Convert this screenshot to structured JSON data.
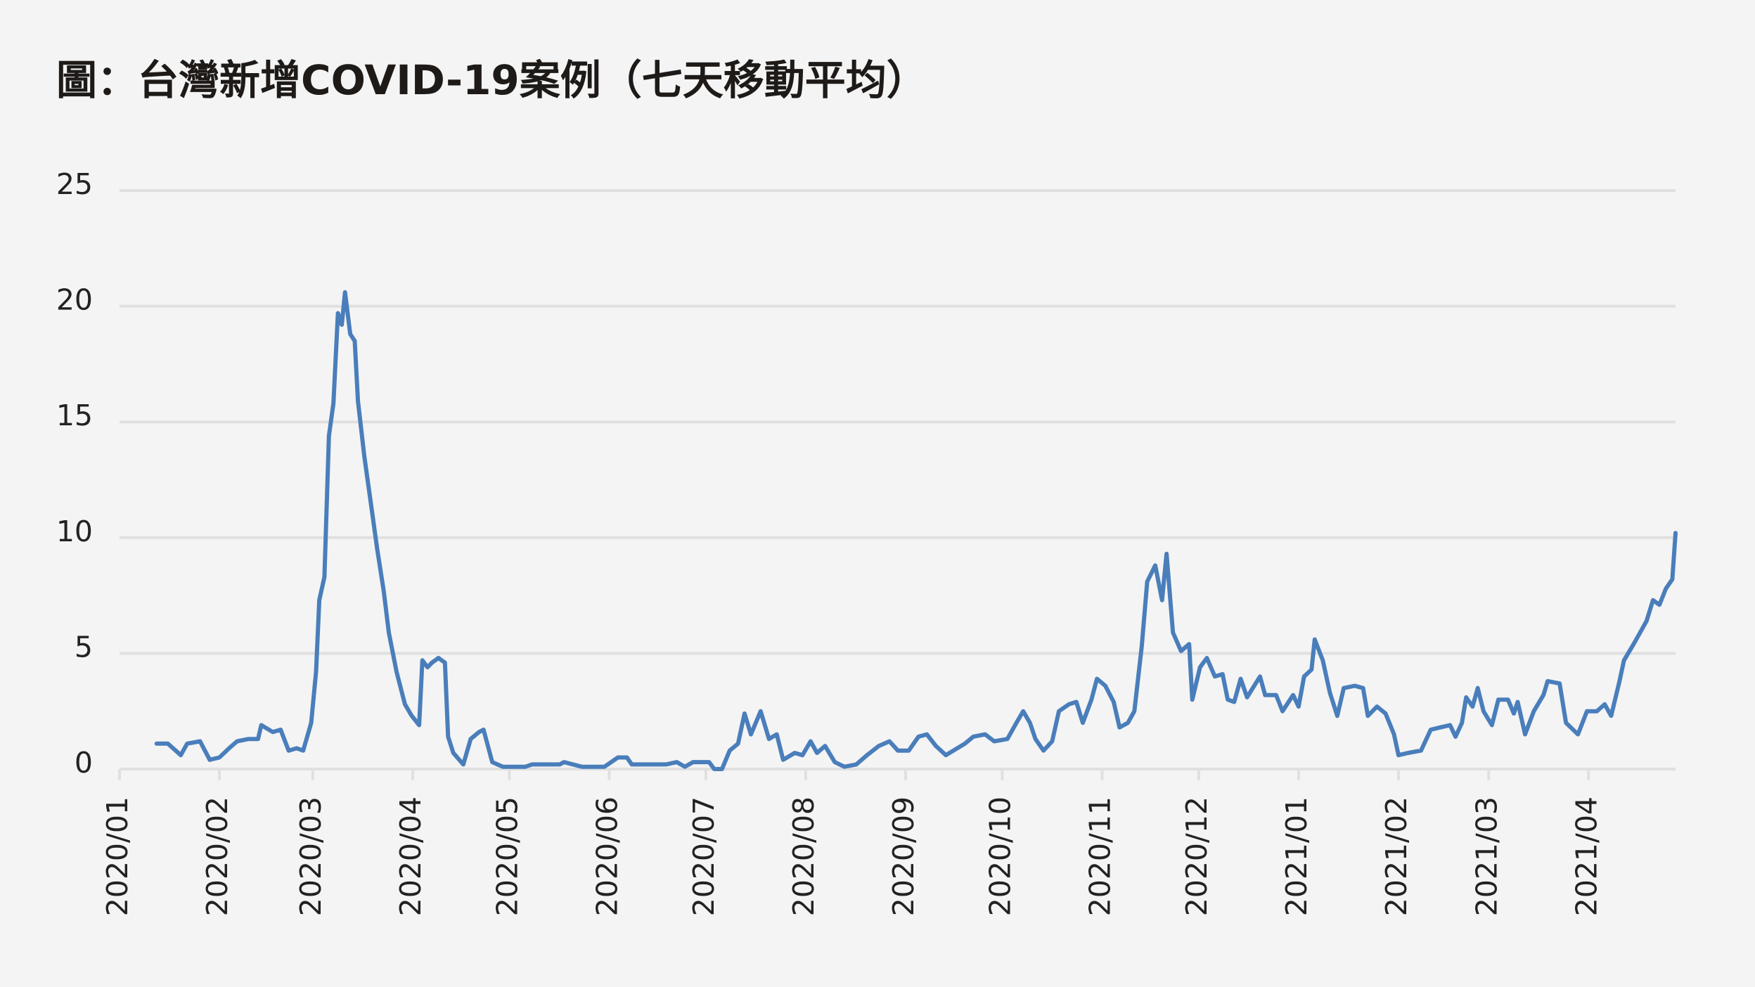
{
  "chart_data": {
    "type": "line",
    "title": "圖：台灣新增COVID-19案例（七天移動平均）",
    "color": "#4a7ebb",
    "grid": true,
    "ylim": [
      0,
      25
    ],
    "yticks": [
      0,
      5,
      10,
      15,
      20,
      25
    ],
    "xlim": [
      0,
      483
    ],
    "xticks": [
      {
        "value": 0,
        "label": "2020/01"
      },
      {
        "value": 31,
        "label": "2020/02"
      },
      {
        "value": 60,
        "label": "2020/03"
      },
      {
        "value": 91,
        "label": "2020/04"
      },
      {
        "value": 121,
        "label": "2020/05"
      },
      {
        "value": 152,
        "label": "2020/06"
      },
      {
        "value": 182,
        "label": "2020/07"
      },
      {
        "value": 213,
        "label": "2020/08"
      },
      {
        "value": 244,
        "label": "2020/09"
      },
      {
        "value": 274,
        "label": "2020/10"
      },
      {
        "value": 305,
        "label": "2020/11"
      },
      {
        "value": 335,
        "label": "2020/12"
      },
      {
        "value": 366,
        "label": "2021/01"
      },
      {
        "value": 397,
        "label": "2021/02"
      },
      {
        "value": 425,
        "label": "2021/03"
      },
      {
        "value": 456,
        "label": "2021/04"
      }
    ],
    "x": [
      11.5,
      15,
      19,
      21,
      25,
      28,
      31,
      34,
      36.5,
      40,
      43,
      44,
      47.6,
      50,
      52.5,
      55,
      57,
      59.5,
      61,
      62,
      63.6,
      65,
      66.4,
      67.8,
      69,
      70,
      71.6,
      73,
      74,
      76,
      78,
      80,
      82,
      83.6,
      86,
      88.6,
      90.7,
      93,
      94,
      95.6,
      97,
      99,
      101,
      102,
      103.6,
      106.7,
      109,
      111.6,
      113,
      115.7,
      119,
      126,
      128,
      136.6,
      138,
      143.5,
      150.5,
      152.6,
      154.7,
      157.5,
      159,
      169.6,
      173,
      175.5,
      178,
      183,
      184.6,
      187,
      189.4,
      192,
      194,
      196,
      199,
      201.6,
      204,
      206,
      209.6,
      212,
      214.5,
      216.5,
      219,
      222,
      225,
      228.7,
      232,
      235.7,
      239,
      241.6,
      245,
      248,
      250.6,
      253.4,
      256.5,
      260,
      262.4,
      265,
      268.7,
      271.5,
      275.6,
      278.4,
      280.5,
      282.6,
      284.3,
      286.8,
      289.5,
      291.6,
      294.7,
      297,
      299,
      301.7,
      303.4,
      306,
      308.6,
      310.4,
      313,
      315,
      317.3,
      319,
      321.5,
      323.6,
      325,
      327,
      329.5,
      332,
      333,
      335.4,
      337.5,
      340,
      342.4,
      344,
      346,
      348,
      350,
      354,
      355.6,
      359,
      361,
      364.3,
      366,
      367.7,
      370,
      371,
      373.5,
      375.7,
      378,
      380,
      383.4,
      386,
      387.5,
      390.3,
      393,
      395.6,
      397,
      400,
      404,
      407,
      410,
      413,
      414.7,
      416.7,
      418,
      420,
      421.6,
      423.4,
      426,
      428,
      431,
      432.8,
      434,
      436.3,
      439,
      442,
      443.3,
      447,
      449,
      452.7,
      455.5,
      458.6,
      461,
      463,
      465.6,
      467,
      470,
      472,
      474,
      476,
      478,
      480,
      482,
      483
    ],
    "values": [
      1.1,
      1.1,
      0.6,
      1.1,
      1.2,
      0.4,
      0.5,
      0.9,
      1.2,
      1.3,
      1.3,
      1.9,
      1.6,
      1.7,
      0.8,
      0.9,
      0.8,
      2,
      4.2,
      7.3,
      8.3,
      14.4,
      15.8,
      19.7,
      19.2,
      20.6,
      18.8,
      18.5,
      15.9,
      13.5,
      11.5,
      9.5,
      7.7,
      5.9,
      4.2,
      2.8,
      2.3,
      1.9,
      4.7,
      4.4,
      4.6,
      4.8,
      4.6,
      1.4,
      0.7,
      0.2,
      1.3,
      1.6,
      1.7,
      0.3,
      0.1,
      0.1,
      0.2,
      0.2,
      0.3,
      0.1,
      0.1,
      0.3,
      0.5,
      0.5,
      0.2,
      0.2,
      0.3,
      0.1,
      0.3,
      0.3,
      0,
      0,
      0.8,
      1.1,
      2.4,
      1.5,
      2.5,
      1.3,
      1.5,
      0.4,
      0.7,
      0.6,
      1.2,
      0.7,
      1.0,
      0.3,
      0.1,
      0.2,
      0.6,
      1.0,
      1.2,
      0.8,
      0.8,
      1.4,
      1.5,
      1.0,
      0.6,
      0.9,
      1.1,
      1.4,
      1.5,
      1.2,
      1.3,
      2.0,
      2.5,
      2.0,
      1.3,
      0.8,
      1.2,
      2.5,
      2.8,
      2.9,
      2.0,
      3.0,
      3.9,
      3.6,
      2.9,
      1.8,
      2.0,
      2.5,
      5.3,
      8.1,
      8.8,
      7.3,
      9.3,
      5.9,
      5.1,
      5.4,
      3.0,
      4.4,
      4.8,
      4.0,
      4.1,
      3.0,
      2.9,
      3.9,
      3.1,
      4.0,
      3.2,
      3.2,
      2.5,
      3.2,
      2.7,
      4.0,
      4.3,
      5.6,
      4.7,
      3.3,
      2.3,
      3.5,
      3.6,
      3.5,
      2.3,
      2.7,
      2.4,
      1.5,
      0.6,
      0.7,
      0.8,
      1.7,
      1.8,
      1.9,
      1.4,
      2.0,
      3.1,
      2.7,
      3.5,
      2.5,
      1.9,
      3.0,
      3.0,
      2.4,
      2.9,
      1.5,
      2.5,
      3.2,
      3.8,
      3.7,
      2.0,
      1.5,
      2.5,
      2.5,
      2.8,
      2.3,
      3.8,
      4.7,
      5.4,
      5.9,
      6.4,
      7.3,
      7.1,
      7.8,
      8.2,
      10.2
    ]
  }
}
